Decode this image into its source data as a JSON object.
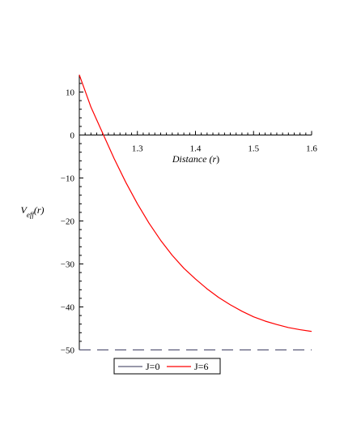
{
  "chart_data": {
    "type": "line",
    "title": "",
    "xlabel": "Distance (r)",
    "ylabel": "V_eff(r)",
    "xlim": [
      1.2,
      1.6
    ],
    "ylim": [
      -50,
      14
    ],
    "x_ticks": [
      1.3,
      1.4,
      1.5,
      1.6
    ],
    "y_ticks": [
      10,
      0,
      -10,
      -20,
      -30,
      -40,
      -50
    ],
    "grid": false,
    "legend_position": "bottom",
    "series": [
      {
        "name": "J=0",
        "color": "#5a5a78",
        "dash": "dashed",
        "x": [
          1.2,
          1.6
        ],
        "y": [
          -50,
          -50
        ]
      },
      {
        "name": "J=6",
        "color": "#ff0000",
        "dash": "solid",
        "x": [
          1.2,
          1.22,
          1.24,
          1.26,
          1.28,
          1.3,
          1.32,
          1.34,
          1.36,
          1.38,
          1.4,
          1.42,
          1.44,
          1.46,
          1.48,
          1.5,
          1.52,
          1.54,
          1.56,
          1.58,
          1.6
        ],
        "y": [
          14,
          6.5,
          0.5,
          -5.5,
          -11,
          -16,
          -20.5,
          -24.5,
          -28,
          -31,
          -33.5,
          -35.8,
          -37.8,
          -39.5,
          -41,
          -42.3,
          -43.3,
          -44.1,
          -44.8,
          -45.3,
          -45.7
        ]
      }
    ]
  }
}
